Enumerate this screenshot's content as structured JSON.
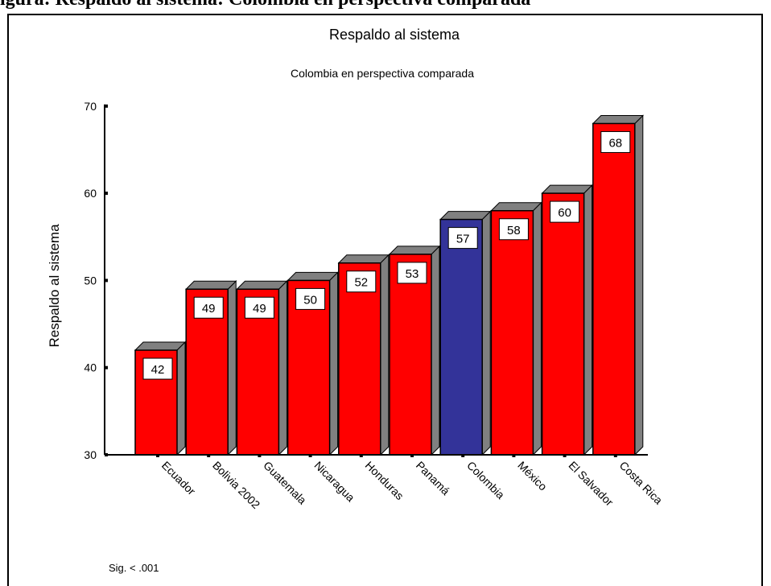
{
  "heading": "igura: Respaldo al sistema: Colombia en perspectiva comparada",
  "note": "Sig. < .001",
  "colors": {
    "bar": "#ff0000",
    "highlight": "#333399",
    "bar_side": "#808080",
    "outline": "#000000",
    "background": "#ffffff"
  },
  "chart_data": {
    "type": "bar",
    "title": "Respaldo al sistema",
    "subtitle": "Colombia en perspectiva comparada",
    "xlabel": "",
    "ylabel": "Respaldo al sistema",
    "categories": [
      "Ecuador",
      "Bolivia 2002",
      "Guatemala",
      "Nicaragua",
      "Honduras",
      "Panamá",
      "Colombia",
      "México",
      "El Salvador",
      "Costa Rica"
    ],
    "values": [
      42,
      49,
      49,
      50,
      52,
      53,
      57,
      58,
      60,
      68
    ],
    "data_labels": [
      "42",
      "49",
      "49",
      "50",
      "52",
      "53",
      "57",
      "58",
      "60",
      "68"
    ],
    "highlighted_category": "Colombia",
    "ylim": [
      30,
      70
    ],
    "yticks": [
      30,
      40,
      50,
      60,
      70
    ],
    "grid": false,
    "legend": "none",
    "style": "3d-bars"
  }
}
